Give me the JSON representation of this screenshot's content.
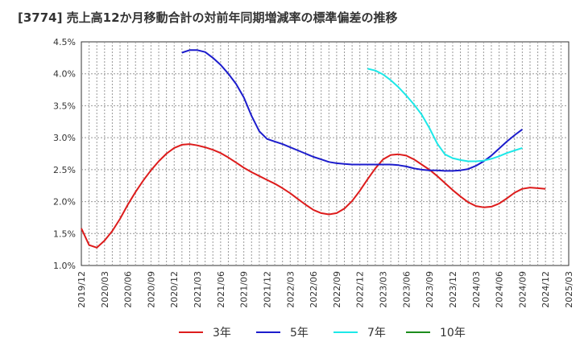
{
  "chart_data": {
    "type": "line",
    "title": "[3774]  売上高12か月移動合計の対前年同期増減率の標準偏差の推移",
    "xlabel": "",
    "ylabel": "",
    "x_ticks": [
      "2019/12",
      "2020/03",
      "2020/06",
      "2020/09",
      "2020/12",
      "2021/03",
      "2021/06",
      "2021/09",
      "2021/12",
      "2022/03",
      "2022/06",
      "2022/09",
      "2022/12",
      "2023/03",
      "2023/06",
      "2023/09",
      "2023/12",
      "2024/03",
      "2024/06",
      "2024/09",
      "2024/12",
      "2025/03"
    ],
    "y_ticks": [
      "1.0%",
      "1.5%",
      "2.0%",
      "2.5%",
      "3.0%",
      "3.5%",
      "4.0%",
      "4.5%"
    ],
    "ylim": [
      1.0,
      4.5
    ],
    "grid": true,
    "legend_position": "bottom",
    "series": [
      {
        "name": "3年",
        "color": "#dd1c1c",
        "x": [
          "2019/12",
          "2020/01",
          "2020/02",
          "2020/03",
          "2020/04",
          "2020/05",
          "2020/06",
          "2020/07",
          "2020/08",
          "2020/09",
          "2020/10",
          "2020/11",
          "2020/12",
          "2021/01",
          "2021/02",
          "2021/03",
          "2021/04",
          "2021/05",
          "2021/06",
          "2021/07",
          "2021/08",
          "2021/09",
          "2021/10",
          "2021/11",
          "2021/12",
          "2022/01",
          "2022/02",
          "2022/03",
          "2022/04",
          "2022/05",
          "2022/06",
          "2022/07",
          "2022/08",
          "2022/09",
          "2022/10",
          "2022/11",
          "2022/12",
          "2023/01",
          "2023/02",
          "2023/03",
          "2023/04",
          "2023/05",
          "2023/06",
          "2023/07",
          "2023/08",
          "2023/09",
          "2023/10",
          "2023/11",
          "2023/12",
          "2024/01",
          "2024/02",
          "2024/03",
          "2024/04",
          "2024/05",
          "2024/06",
          "2024/07",
          "2024/08",
          "2024/09",
          "2024/10",
          "2024/11",
          "2024/12"
        ],
        "values": [
          1.58,
          1.32,
          1.28,
          1.39,
          1.54,
          1.73,
          1.95,
          2.15,
          2.33,
          2.49,
          2.63,
          2.75,
          2.84,
          2.89,
          2.9,
          2.88,
          2.85,
          2.81,
          2.76,
          2.69,
          2.61,
          2.53,
          2.46,
          2.4,
          2.34,
          2.28,
          2.21,
          2.13,
          2.04,
          1.95,
          1.87,
          1.82,
          1.8,
          1.82,
          1.89,
          2.01,
          2.17,
          2.35,
          2.52,
          2.66,
          2.73,
          2.74,
          2.72,
          2.66,
          2.58,
          2.5,
          2.4,
          2.29,
          2.18,
          2.08,
          1.99,
          1.93,
          1.91,
          1.92,
          1.97,
          2.05,
          2.14,
          2.2,
          2.22,
          2.21,
          2.2
        ]
      },
      {
        "name": "5年",
        "color": "#1c1ccc",
        "x": [
          "2021/01",
          "2021/02",
          "2021/03",
          "2021/04",
          "2021/05",
          "2021/06",
          "2021/07",
          "2021/08",
          "2021/09",
          "2021/10",
          "2021/11",
          "2021/12",
          "2022/01",
          "2022/02",
          "2022/03",
          "2022/04",
          "2022/05",
          "2022/06",
          "2022/07",
          "2022/08",
          "2022/09",
          "2022/10",
          "2022/11",
          "2022/12",
          "2023/01",
          "2023/02",
          "2023/03",
          "2023/04",
          "2023/05",
          "2023/06",
          "2023/07",
          "2023/08",
          "2023/09",
          "2023/10",
          "2023/11",
          "2023/12",
          "2024/01",
          "2024/02",
          "2024/03",
          "2024/04",
          "2024/05",
          "2024/06",
          "2024/07",
          "2024/08",
          "2024/09",
          "2024/10",
          "2024/11",
          "2024/12"
        ],
        "values": [
          4.33,
          4.37,
          4.37,
          4.34,
          4.25,
          4.14,
          4.0,
          3.84,
          3.63,
          3.34,
          3.1,
          2.98,
          2.94,
          2.9,
          2.85,
          2.8,
          2.75,
          2.7,
          2.66,
          2.62,
          2.6,
          2.59,
          2.58,
          2.58,
          2.58,
          2.58,
          2.58,
          2.58,
          2.57,
          2.55,
          2.52,
          2.5,
          2.49,
          2.49,
          2.48,
          2.48,
          2.49,
          2.51,
          2.56,
          2.63,
          2.72,
          2.83,
          2.94,
          3.04,
          3.13,
          null,
          null,
          null
        ]
      },
      {
        "name": "7年",
        "color": "#1ce8e8",
        "x": [
          "2023/01",
          "2023/02",
          "2023/03",
          "2023/04",
          "2023/05",
          "2023/06",
          "2023/07",
          "2023/08",
          "2023/09",
          "2023/10",
          "2023/11",
          "2023/12",
          "2024/01",
          "2024/02",
          "2024/03",
          "2024/04",
          "2024/05",
          "2024/06",
          "2024/07",
          "2024/08",
          "2024/09",
          "2024/10",
          "2024/11",
          "2024/12"
        ],
        "values": [
          4.08,
          4.05,
          3.99,
          3.9,
          3.79,
          3.66,
          3.52,
          3.36,
          3.15,
          2.91,
          2.74,
          2.68,
          2.65,
          2.63,
          2.63,
          2.64,
          2.67,
          2.71,
          2.76,
          2.8,
          2.84,
          null,
          null,
          null
        ]
      },
      {
        "name": "10年",
        "color": "#1c8c1c",
        "x": [],
        "values": []
      }
    ]
  }
}
